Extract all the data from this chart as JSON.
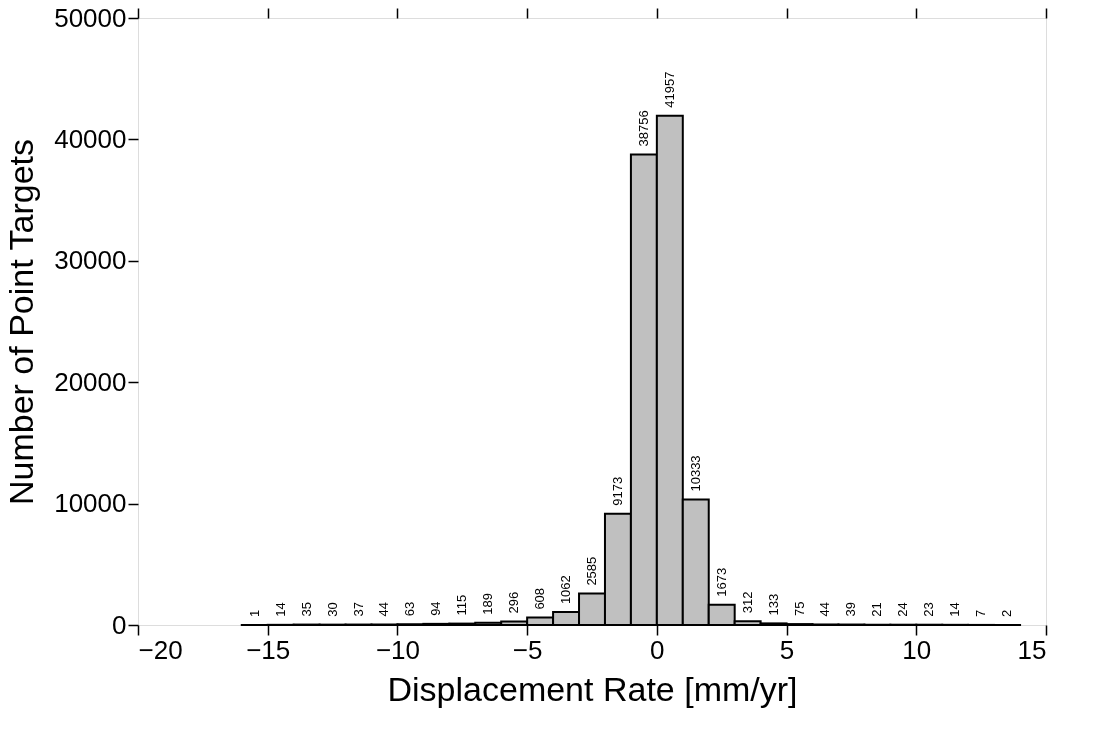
{
  "chart_data": {
    "type": "histogram",
    "xlabel": "Displacement Rate [mm/yr]",
    "ylabel": "Number of Point Targets",
    "bins": [
      -16,
      -15,
      -14,
      -13,
      -12,
      -11,
      -10,
      -9,
      -8,
      -7,
      -6,
      -5,
      -4,
      -3,
      -2,
      -1,
      0,
      1,
      2,
      3,
      4,
      5,
      6,
      7,
      8,
      9,
      10,
      11,
      12,
      13,
      14
    ],
    "values": [
      1,
      14,
      35,
      30,
      37,
      44,
      63,
      94,
      115,
      189,
      296,
      608,
      1062,
      2585,
      9173,
      38756,
      41957,
      10333,
      1673,
      312,
      133,
      75,
      44,
      39,
      21,
      24,
      23,
      14,
      7,
      2
    ],
    "color": "#c0c0c0",
    "xlim": [
      -20,
      15
    ],
    "xticks": [
      -20,
      -15,
      -10,
      -5,
      0,
      5,
      10,
      15
    ],
    "ylim": [
      0,
      50000
    ],
    "yticks": [
      0,
      10000,
      20000,
      30000,
      40000,
      50000
    ],
    "data_labels": true,
    "grid": false
  }
}
